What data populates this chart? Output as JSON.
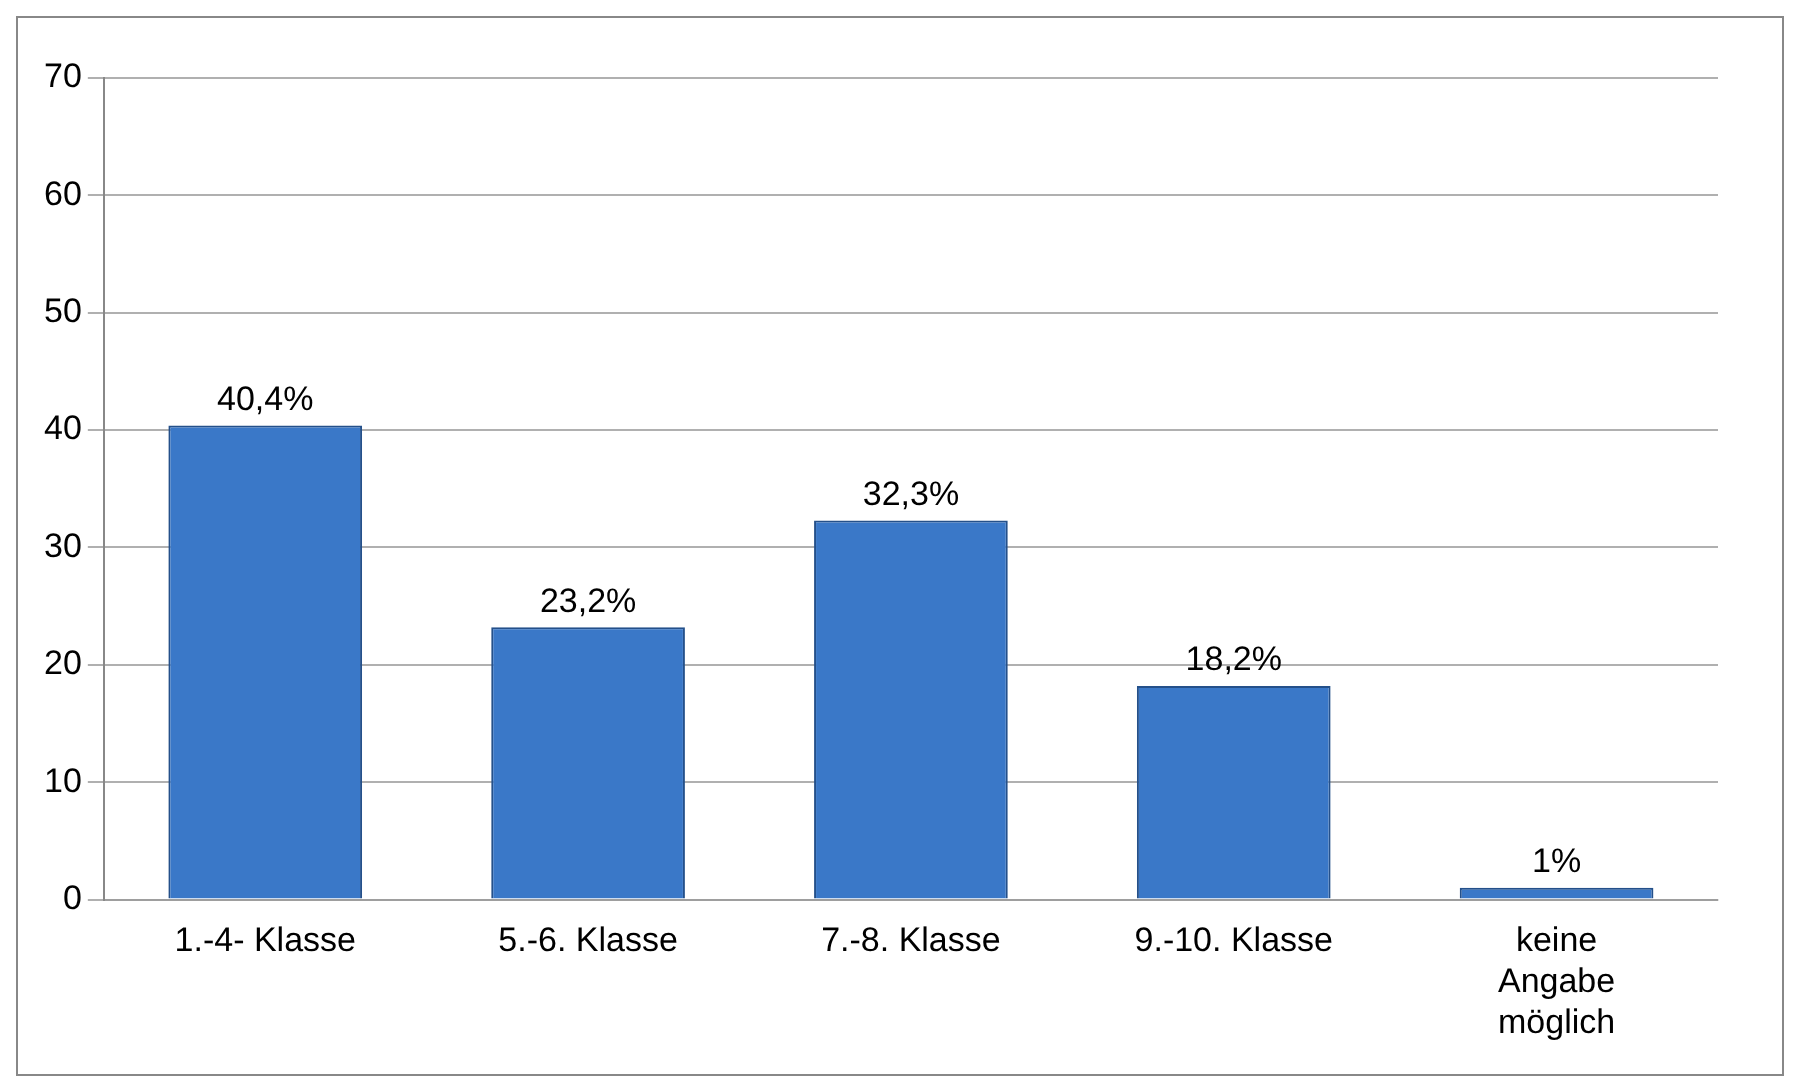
{
  "chart_data": {
    "type": "bar",
    "categories": [
      "1.-4- Klasse",
      "5.-6. Klasse",
      "7.-8. Klasse",
      "9.-10. Klasse",
      "keine Angabe möglich"
    ],
    "values": [
      40.4,
      23.2,
      32.3,
      18.2,
      1
    ],
    "value_labels": [
      "40,4%",
      "23,2%",
      "32,3%",
      "18,2%",
      "1%"
    ],
    "color": "#3a78c8",
    "ylim": [
      0,
      70
    ],
    "yticks": [
      0,
      10,
      20,
      30,
      40,
      50,
      60,
      70
    ],
    "grid": "y",
    "legend": false
  }
}
